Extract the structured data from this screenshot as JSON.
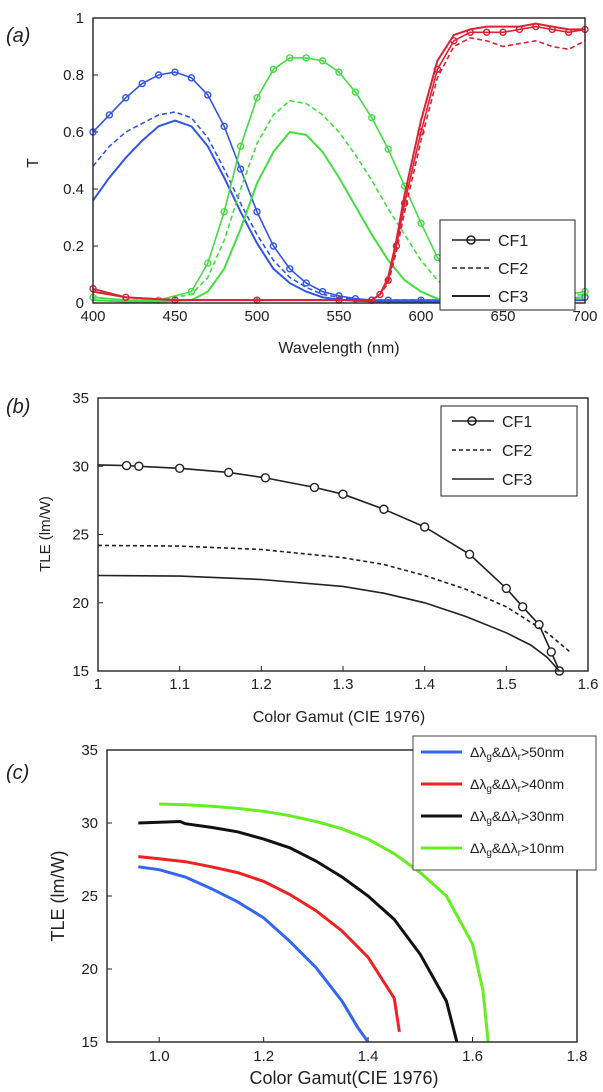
{
  "chart_data": [
    {
      "type": "line",
      "panel_label": "(a)",
      "xlabel": "Wavelength (nm)",
      "ylabel": "T",
      "xlim": [
        400,
        700
      ],
      "ylim": [
        0,
        1
      ],
      "x_ticks": [
        "400",
        "450",
        "500",
        "550",
        "600",
        "650",
        "700"
      ],
      "y_ticks": [
        "0",
        "0.2",
        "0.4",
        "0.6",
        "0.8",
        "1"
      ],
      "grid": false,
      "legend_position": "center-right",
      "legend": [
        {
          "name": "CF1",
          "style": "solid-circle"
        },
        {
          "name": "CF2",
          "style": "dashed"
        },
        {
          "name": "CF3",
          "style": "solid"
        }
      ],
      "colors": {
        "blue": "#3355e6",
        "green": "#44dd44",
        "red": "#dd2233"
      },
      "series": [
        {
          "legend": "CF1",
          "color": "blue",
          "style": "solid-circle",
          "x": [
            400,
            410,
            420,
            430,
            440,
            450,
            460,
            470,
            480,
            490,
            500,
            510,
            520,
            530,
            540,
            550,
            560,
            570,
            580,
            600,
            650,
            700
          ],
          "y": [
            0.6,
            0.66,
            0.72,
            0.77,
            0.8,
            0.81,
            0.79,
            0.73,
            0.62,
            0.47,
            0.32,
            0.2,
            0.12,
            0.07,
            0.04,
            0.025,
            0.015,
            0.01,
            0.01,
            0.01,
            0.01,
            0.02
          ]
        },
        {
          "legend": "CF2",
          "color": "blue",
          "style": "dashed",
          "x": [
            400,
            410,
            420,
            430,
            440,
            450,
            460,
            470,
            480,
            490,
            500,
            510,
            520,
            530,
            540,
            550,
            560,
            570,
            580,
            600,
            650,
            700
          ],
          "y": [
            0.48,
            0.55,
            0.6,
            0.63,
            0.66,
            0.67,
            0.65,
            0.58,
            0.47,
            0.35,
            0.24,
            0.15,
            0.09,
            0.055,
            0.03,
            0.02,
            0.012,
            0.01,
            0.01,
            0.01,
            0.01,
            0.02
          ]
        },
        {
          "legend": "CF3",
          "color": "blue",
          "style": "solid",
          "x": [
            400,
            410,
            420,
            430,
            440,
            450,
            460,
            470,
            480,
            490,
            500,
            510,
            520,
            530,
            540,
            550,
            560,
            570,
            580,
            600,
            650,
            700
          ],
          "y": [
            0.36,
            0.44,
            0.51,
            0.57,
            0.62,
            0.64,
            0.62,
            0.55,
            0.44,
            0.32,
            0.21,
            0.12,
            0.07,
            0.04,
            0.02,
            0.012,
            0.008,
            0.006,
            0.005,
            0.005,
            0.006,
            0.01
          ]
        },
        {
          "legend": "CF1",
          "color": "green",
          "style": "solid-circle",
          "x": [
            400,
            420,
            440,
            460,
            470,
            480,
            490,
            500,
            510,
            520,
            530,
            540,
            550,
            560,
            570,
            580,
            590,
            600,
            610,
            620,
            640,
            660,
            680,
            700
          ],
          "y": [
            0.02,
            0.01,
            0.01,
            0.04,
            0.14,
            0.32,
            0.55,
            0.72,
            0.82,
            0.86,
            0.86,
            0.85,
            0.81,
            0.74,
            0.65,
            0.54,
            0.41,
            0.28,
            0.16,
            0.07,
            0.02,
            0.01,
            0.02,
            0.04
          ]
        },
        {
          "legend": "CF2",
          "color": "green",
          "style": "dashed",
          "x": [
            400,
            420,
            440,
            460,
            470,
            480,
            490,
            500,
            510,
            520,
            530,
            540,
            550,
            560,
            570,
            580,
            590,
            600,
            610,
            620,
            640,
            660,
            680,
            700
          ],
          "y": [
            0.02,
            0.01,
            0.01,
            0.03,
            0.09,
            0.22,
            0.4,
            0.56,
            0.66,
            0.71,
            0.7,
            0.66,
            0.6,
            0.52,
            0.43,
            0.33,
            0.24,
            0.15,
            0.08,
            0.035,
            0.01,
            0.01,
            0.02,
            0.03
          ]
        },
        {
          "legend": "CF3",
          "color": "green",
          "style": "solid",
          "x": [
            400,
            420,
            440,
            460,
            470,
            480,
            490,
            500,
            510,
            520,
            530,
            540,
            550,
            560,
            570,
            580,
            590,
            600,
            610,
            620,
            640,
            660,
            680,
            700
          ],
          "y": [
            0.01,
            0.005,
            0.005,
            0.01,
            0.04,
            0.12,
            0.26,
            0.42,
            0.53,
            0.6,
            0.59,
            0.53,
            0.44,
            0.34,
            0.24,
            0.15,
            0.08,
            0.04,
            0.015,
            0.005,
            0.003,
            0.005,
            0.01,
            0.02
          ]
        },
        {
          "legend": "CF1",
          "color": "red",
          "style": "solid-circle",
          "x": [
            400,
            420,
            450,
            500,
            550,
            570,
            575,
            580,
            585,
            590,
            600,
            610,
            620,
            630,
            640,
            650,
            660,
            670,
            680,
            690,
            700
          ],
          "y": [
            0.05,
            0.02,
            0.01,
            0.01,
            0.01,
            0.01,
            0.03,
            0.08,
            0.2,
            0.35,
            0.6,
            0.82,
            0.92,
            0.95,
            0.95,
            0.95,
            0.96,
            0.97,
            0.96,
            0.95,
            0.96
          ]
        },
        {
          "legend": "CF2",
          "color": "red",
          "style": "dashed",
          "x": [
            400,
            420,
            450,
            500,
            550,
            570,
            575,
            580,
            585,
            590,
            600,
            610,
            620,
            630,
            640,
            650,
            660,
            670,
            680,
            690,
            700
          ],
          "y": [
            0.05,
            0.02,
            0.01,
            0.01,
            0.01,
            0.01,
            0.03,
            0.07,
            0.18,
            0.32,
            0.57,
            0.79,
            0.9,
            0.93,
            0.92,
            0.9,
            0.91,
            0.92,
            0.9,
            0.89,
            0.92
          ]
        },
        {
          "legend": "CF3",
          "color": "red",
          "style": "solid",
          "x": [
            400,
            420,
            450,
            500,
            550,
            570,
            575,
            580,
            585,
            590,
            600,
            610,
            620,
            630,
            640,
            650,
            660,
            670,
            680,
            690,
            700
          ],
          "y": [
            0.04,
            0.02,
            0.01,
            0.01,
            0.01,
            0.01,
            0.03,
            0.09,
            0.22,
            0.38,
            0.64,
            0.85,
            0.94,
            0.96,
            0.97,
            0.97,
            0.97,
            0.98,
            0.97,
            0.96,
            0.96
          ]
        }
      ]
    },
    {
      "type": "line",
      "panel_label": "(b)",
      "xlabel": "Color Gamut (CIE 1976)",
      "ylabel": "TLE (lm/W)",
      "xlim": [
        1,
        1.6
      ],
      "ylim": [
        15,
        35
      ],
      "x_ticks": [
        "1",
        "1.1",
        "1.2",
        "1.3",
        "1.4",
        "1.5",
        "1.6"
      ],
      "y_ticks": [
        "15",
        "20",
        "25",
        "30",
        "35"
      ],
      "grid": false,
      "legend_position": "top-right",
      "series": [
        {
          "name": "CF1",
          "style": "solid-circle",
          "color": "#222222",
          "x": [
            1.0,
            1.035,
            1.05,
            1.1,
            1.16,
            1.205,
            1.265,
            1.3,
            1.35,
            1.4,
            1.455,
            1.5,
            1.52,
            1.54,
            1.555,
            1.565
          ],
          "y": [
            30.1,
            30.05,
            30.0,
            29.85,
            29.55,
            29.15,
            28.45,
            27.95,
            26.85,
            25.55,
            23.55,
            21.05,
            19.7,
            18.4,
            16.4,
            15.0
          ]
        },
        {
          "name": "CF2",
          "style": "dashed",
          "color": "#222222",
          "x": [
            1.0,
            1.1,
            1.2,
            1.3,
            1.35,
            1.4,
            1.45,
            1.5,
            1.55,
            1.58
          ],
          "y": [
            24.2,
            24.15,
            23.9,
            23.3,
            22.8,
            22.0,
            21.0,
            19.7,
            17.8,
            16.3
          ]
        },
        {
          "name": "CF3",
          "style": "solid",
          "color": "#222222",
          "x": [
            1.0,
            1.1,
            1.2,
            1.3,
            1.35,
            1.4,
            1.45,
            1.5,
            1.53,
            1.55,
            1.565
          ],
          "y": [
            22.0,
            21.95,
            21.7,
            21.2,
            20.7,
            20.0,
            19.0,
            17.8,
            16.9,
            16.0,
            15.0
          ]
        }
      ]
    },
    {
      "type": "line",
      "panel_label": "(c)",
      "xlabel": "Color Gamut(CIE 1976)",
      "ylabel": "TLE (lm/W)",
      "xlim": [
        0.9,
        1.8
      ],
      "ylim": [
        15,
        35
      ],
      "x_ticks": [
        "1.0",
        "1.2",
        "1.4",
        "1.6",
        "1.8"
      ],
      "y_ticks": [
        "15",
        "20",
        "25",
        "30",
        "35"
      ],
      "grid": false,
      "legend_position": "top-right",
      "legend": [
        {
          "label": "Δλ",
          "sub1": "g",
          "mid": "&Δλ",
          "sub2": "r",
          "tail": ">50nm",
          "color": "#3366ee"
        },
        {
          "label": "Δλ",
          "sub1": "g",
          "mid": "&Δλ",
          "sub2": "r",
          "tail": ">40nm",
          "color": "#ee2222"
        },
        {
          "label": "Δλ",
          "sub1": "g",
          "mid": "&Δλ",
          "sub2": "r",
          "tail": ">30nm",
          "color": "#111111"
        },
        {
          "label": "Δλ",
          "sub1": "g",
          "mid": "&Δλ",
          "sub2": "r",
          "tail": ">10nm",
          "color": "#66ee22"
        }
      ],
      "series": [
        {
          "color": "#3366ee",
          "x": [
            0.96,
            1.0,
            1.05,
            1.1,
            1.15,
            1.2,
            1.25,
            1.3,
            1.35,
            1.38,
            1.4
          ],
          "y": [
            27.0,
            26.8,
            26.3,
            25.5,
            24.6,
            23.5,
            21.9,
            20.1,
            17.8,
            16.0,
            15.0
          ]
        },
        {
          "color": "#ee2222",
          "x": [
            0.96,
            1.0,
            1.05,
            1.1,
            1.15,
            1.2,
            1.25,
            1.3,
            1.35,
            1.4,
            1.45,
            1.46
          ],
          "y": [
            27.7,
            27.55,
            27.35,
            27.0,
            26.6,
            26.0,
            25.1,
            24.0,
            22.6,
            20.8,
            18.0,
            15.7
          ]
        },
        {
          "color": "#111111",
          "x": [
            0.96,
            1.0,
            1.04,
            1.05,
            1.1,
            1.15,
            1.2,
            1.25,
            1.3,
            1.35,
            1.4,
            1.45,
            1.5,
            1.55,
            1.57
          ],
          "y": [
            30.0,
            30.05,
            30.1,
            29.95,
            29.7,
            29.4,
            28.9,
            28.3,
            27.4,
            26.3,
            25.0,
            23.4,
            21.0,
            17.8,
            15.0
          ]
        },
        {
          "color": "#66ee22",
          "x": [
            1.0,
            1.05,
            1.1,
            1.15,
            1.2,
            1.25,
            1.3,
            1.35,
            1.4,
            1.45,
            1.5,
            1.55,
            1.6,
            1.62,
            1.63
          ],
          "y": [
            31.3,
            31.25,
            31.15,
            31.0,
            30.8,
            30.5,
            30.1,
            29.6,
            28.9,
            27.9,
            26.6,
            25.0,
            21.7,
            18.5,
            15.0
          ]
        }
      ]
    }
  ]
}
